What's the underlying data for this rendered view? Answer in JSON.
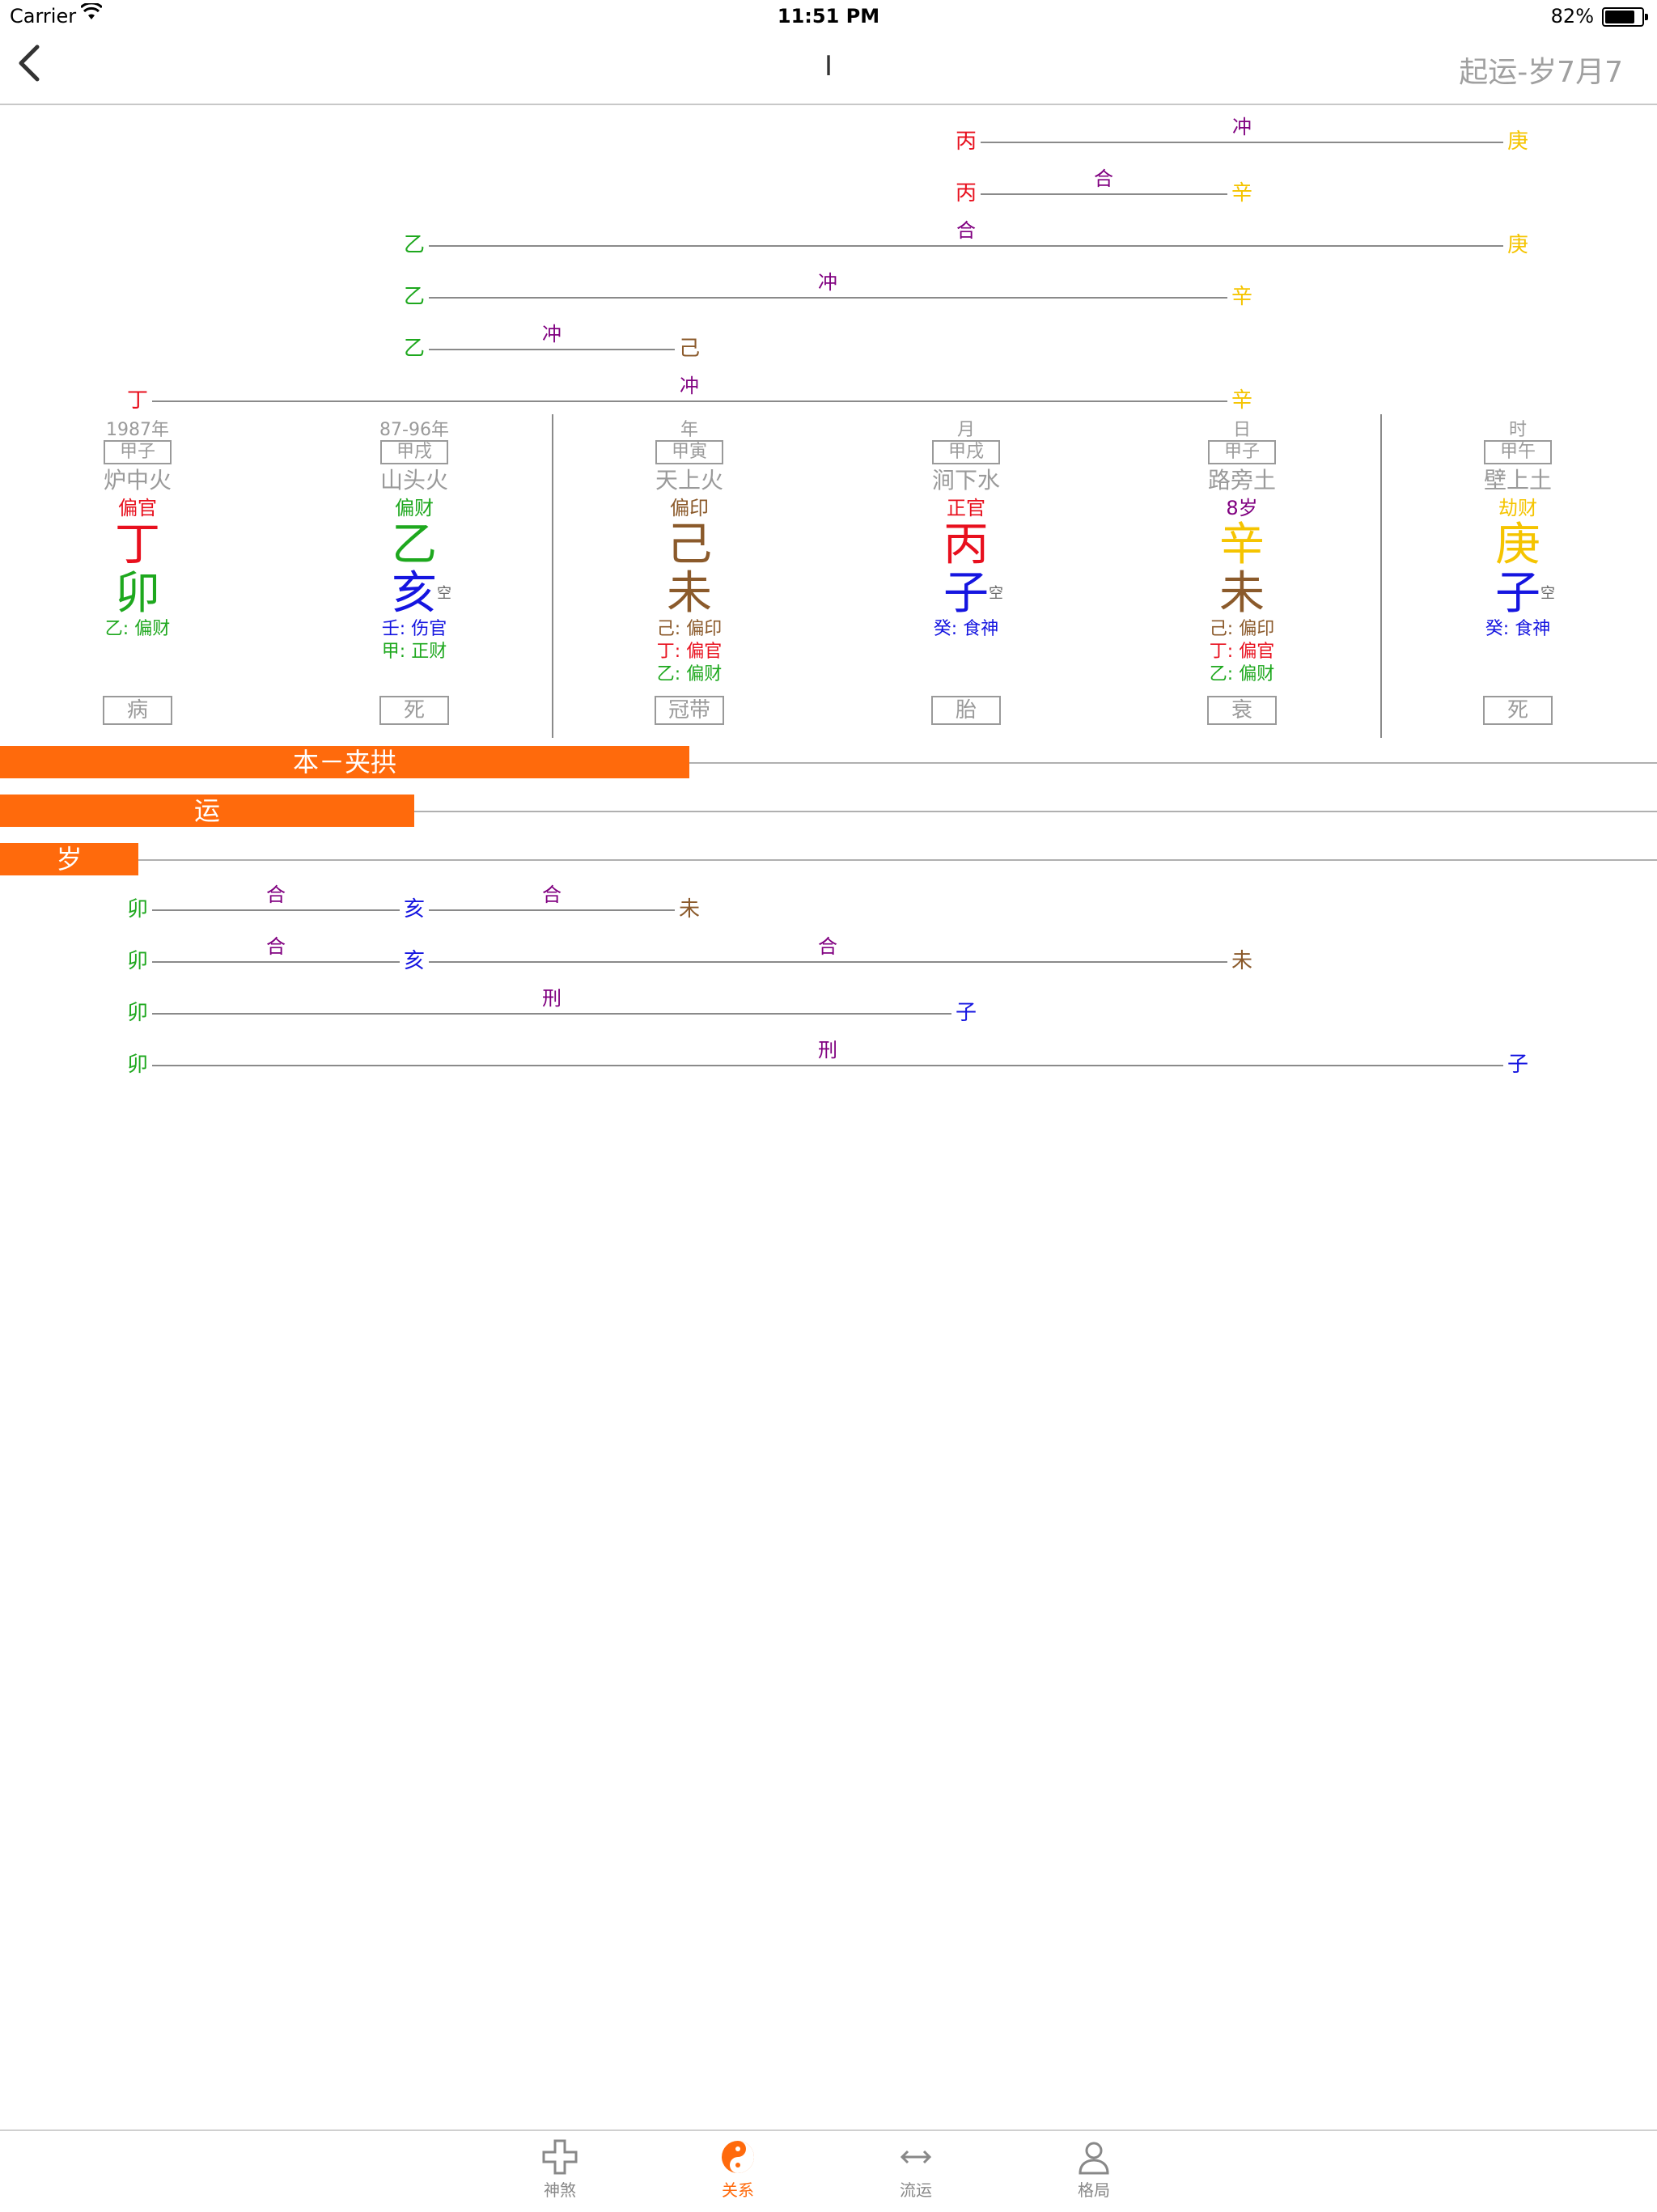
{
  "status_bar": {
    "carrier": "Carrier",
    "time": "11:51 PM",
    "battery": "82%"
  },
  "nav": {
    "back_icon": "chevron-left-icon",
    "title": "I",
    "right_text": "起运-岁7月7"
  },
  "colors": {
    "red": "#e8101e",
    "green": "#1ea81e",
    "blue": "#1515e0",
    "brown": "#8b5a2b",
    "gold": "#f5c400",
    "purple": "#800080",
    "orange": "#ff6a0c"
  },
  "top_relations": [
    {
      "a": "丙",
      "b": "庚",
      "label": "冲"
    },
    {
      "a": "丙",
      "b": "辛",
      "label": "合"
    },
    {
      "a": "乙",
      "b": "庚",
      "label": "合"
    },
    {
      "a": "乙",
      "b": "辛",
      "label": "冲"
    },
    {
      "a": "乙",
      "b": "己",
      "label": "冲"
    },
    {
      "a": "丁",
      "b": "辛",
      "label": "冲"
    }
  ],
  "pillars": [
    {
      "caption": "1987年",
      "ganzhi": "甲子",
      "nayin": "炉中火",
      "god": "偏官",
      "stem": "丁",
      "branch": "卯",
      "kong": "",
      "hidden": [
        "乙: 偏财"
      ],
      "stage": "病"
    },
    {
      "caption": "87-96年",
      "ganzhi": "甲戌",
      "nayin": "山头火",
      "god": "偏财",
      "stem": "乙",
      "branch": "亥",
      "kong": "空",
      "hidden": [
        "壬: 伤官",
        "甲: 正财"
      ],
      "stage": "死"
    },
    {
      "caption": "年",
      "ganzhi": "甲寅",
      "nayin": "天上火",
      "god": "偏印",
      "stem": "己",
      "branch": "未",
      "kong": "",
      "hidden": [
        "己: 偏印",
        "丁: 偏官",
        "乙: 偏财"
      ],
      "stage": "冠带"
    },
    {
      "caption": "月",
      "ganzhi": "甲戌",
      "nayin": "涧下水",
      "god": "正官",
      "stem": "丙",
      "branch": "子",
      "kong": "空",
      "hidden": [
        "癸: 食神"
      ],
      "stage": "胎"
    },
    {
      "caption": "日",
      "ganzhi": "甲子",
      "nayin": "路旁土",
      "god": "8岁",
      "stem": "辛",
      "branch": "未",
      "kong": "",
      "hidden": [
        "己: 偏印",
        "丁: 偏官",
        "乙: 偏财"
      ],
      "stage": "衰"
    },
    {
      "caption": "时",
      "ganzhi": "甲午",
      "nayin": "壁上土",
      "god": "劫财",
      "stem": "庚",
      "branch": "子",
      "kong": "空",
      "hidden": [
        "癸: 食神"
      ],
      "stage": "死"
    }
  ],
  "bars": {
    "ben": "本－夹拱",
    "yun": "运",
    "sui": "岁"
  },
  "bottom_relations": [
    {
      "a": "卯",
      "m": "亥",
      "b": "未",
      "label1": "合",
      "label2": "合"
    },
    {
      "a": "卯",
      "m": "亥",
      "b": "未",
      "label1": "合",
      "label2": "合"
    },
    {
      "a": "卯",
      "b": "子",
      "label": "刑"
    },
    {
      "a": "卯",
      "b": "子",
      "label": "刑"
    }
  ],
  "tabs": [
    {
      "label": "神煞",
      "icon": "cross-icon"
    },
    {
      "label": "关系",
      "icon": "yin-yang-icon",
      "active": true
    },
    {
      "label": "流运",
      "icon": "left-right-arrow-icon"
    },
    {
      "label": "格局",
      "icon": "person-icon"
    }
  ]
}
